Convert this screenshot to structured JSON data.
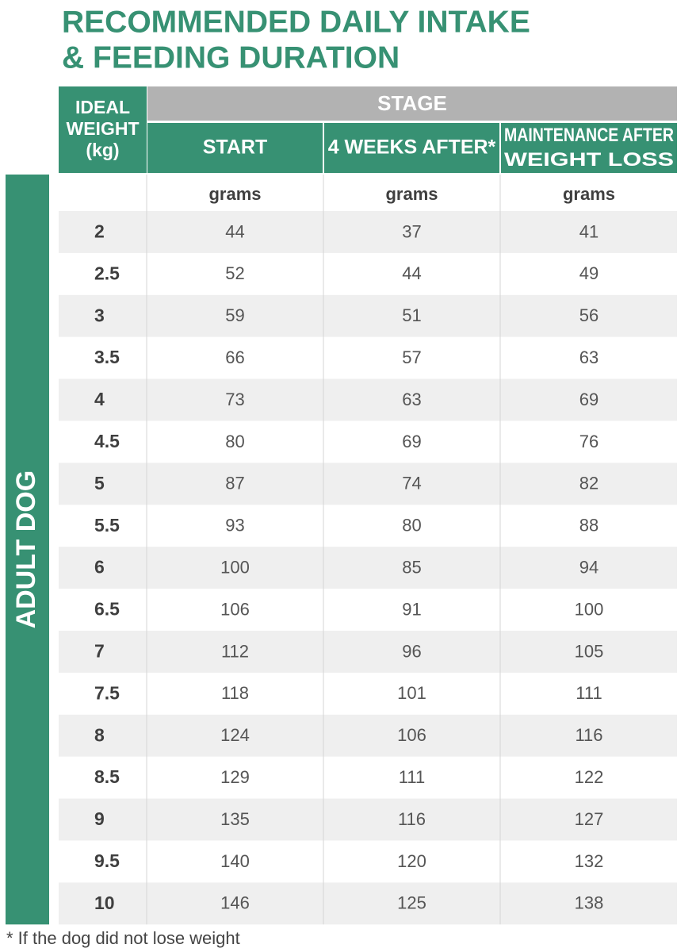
{
  "title": [
    "RECOMMENDED DAILY INTAKE",
    "& FEEDING DURATION"
  ],
  "table": {
    "weight_header": [
      "IDEAL",
      "WEIGHT",
      "(kg)"
    ],
    "group_header": "STAGE",
    "columns": [
      [
        "START"
      ],
      [
        "4 WEEKS AFTER*"
      ],
      [
        "MAINTENANCE AFTER",
        "WEIGHT LOSS"
      ]
    ],
    "units": [
      "grams",
      "grams",
      "grams"
    ],
    "side_label": "ADULT DOG",
    "rows": [
      [
        2,
        44,
        37,
        41
      ],
      [
        2.5,
        52,
        44,
        49
      ],
      [
        3,
        59,
        51,
        56
      ],
      [
        3.5,
        66,
        57,
        63
      ],
      [
        4,
        73,
        63,
        69
      ],
      [
        4.5,
        80,
        69,
        76
      ],
      [
        5,
        87,
        74,
        82
      ],
      [
        5.5,
        93,
        80,
        88
      ],
      [
        6,
        100,
        85,
        94
      ],
      [
        6.5,
        106,
        91,
        100
      ],
      [
        7,
        112,
        96,
        105
      ],
      [
        7.5,
        118,
        101,
        111
      ],
      [
        8,
        124,
        106,
        116
      ],
      [
        8.5,
        129,
        111,
        122
      ],
      [
        9,
        135,
        116,
        127
      ],
      [
        9.5,
        140,
        120,
        132
      ],
      [
        10,
        146,
        125,
        138
      ]
    ]
  },
  "footnote": "* If the dog did not lose weight"
}
